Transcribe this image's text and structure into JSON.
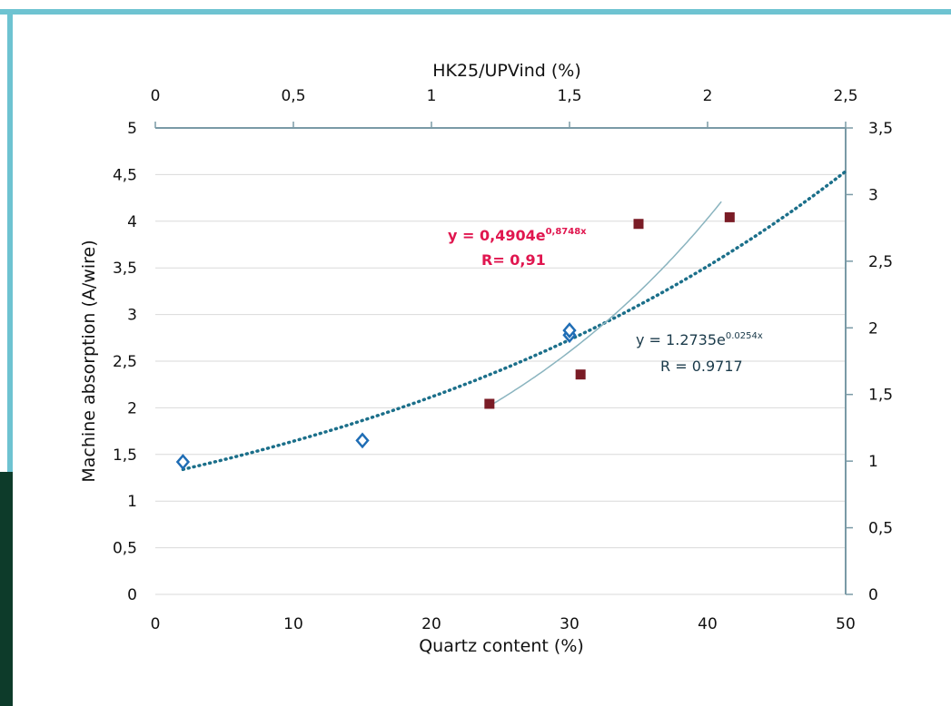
{
  "chart_data": {
    "type": "scatter",
    "title": "",
    "xlabel": "Quartz content (%)",
    "x2label": "HK25/UPVind (%)",
    "ylabel": "Machine absorption (A/wire)",
    "y2label": "",
    "xlim": [
      0,
      50
    ],
    "x2lim": [
      0,
      2.5
    ],
    "ylim": [
      0,
      5
    ],
    "y2lim": [
      0,
      3.5
    ],
    "xticks": [
      "0",
      "10",
      "20",
      "30",
      "40",
      "50"
    ],
    "x2ticks": [
      "0",
      "0,5",
      "1",
      "1,5",
      "2",
      "2,5"
    ],
    "yticks": [
      "0",
      "0,5",
      "1",
      "1,5",
      "2",
      "2,5",
      "3",
      "3,5",
      "4",
      "4,5",
      "5"
    ],
    "y2ticks": [
      "0",
      "0,5",
      "1",
      "1,5",
      "2",
      "2,5",
      "3",
      "3,5"
    ],
    "grid": true,
    "series": [
      {
        "marker": "diamond-open",
        "axes": "x-y",
        "color": "#1f6db5",
        "x": [
          2,
          15,
          30,
          30
        ],
        "y": [
          1.42,
          1.65,
          2.78,
          2.83
        ]
      },
      {
        "marker": "square-filled",
        "axes": "x2-y2",
        "color": "#7a1c26",
        "x": [
          1.21,
          1.54,
          1.75,
          2.08
        ],
        "y": [
          1.43,
          1.65,
          2.78,
          2.83
        ]
      }
    ],
    "trendlines": [
      {
        "style": "dotted",
        "color": "#1b6f8a",
        "axes": "x-y",
        "a": 1.2735,
        "b": 0.0254,
        "x_range": [
          2,
          50
        ],
        "equation_base": "y = 1.2735e",
        "equation_exp": "0.0254x",
        "r_label": "R = 0.9717"
      },
      {
        "style": "solid",
        "color": "#8ab4bf",
        "axes": "x2-y2",
        "a": 0.4904,
        "b": 0.8748,
        "x_range": [
          1.22,
          2.05
        ],
        "equation_base": "y = 0,4904e",
        "equation_exp": "0,8748x",
        "r_label": "R= 0,91",
        "label_color": "#e0164f"
      }
    ]
  },
  "colors": {
    "frame": "#6ec3d1",
    "frame_dark": "#0d3b2a",
    "axis": "#7a9aa6",
    "grid": "#d9d9d9"
  }
}
